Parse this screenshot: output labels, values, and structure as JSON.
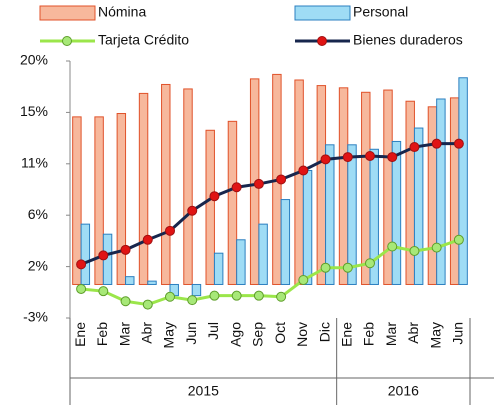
{
  "chart_data": {
    "type": "bar",
    "groups": [
      {
        "label": "2015",
        "categories": [
          "Ene",
          "Feb",
          "Mar",
          "Abr",
          "May",
          "Jun",
          "Jul",
          "Ago",
          "Sep",
          "Oct",
          "Nov",
          "Dic"
        ]
      },
      {
        "label": "2016",
        "categories": [
          "Ene",
          "Feb",
          "Mar",
          "Abr",
          "May",
          "Jun"
        ]
      }
    ],
    "series": [
      {
        "name": "Nómina",
        "type": "bar",
        "color": "#f7b89c",
        "stroke": "#e0522a",
        "values": [
          15.0,
          15.0,
          15.3,
          17.1,
          17.9,
          17.5,
          13.8,
          14.6,
          18.4,
          18.8,
          18.3,
          17.8,
          17.6,
          17.2,
          17.4,
          16.4,
          15.9,
          16.7
        ]
      },
      {
        "name": "Personal",
        "type": "bar",
        "color": "#9fdcf5",
        "stroke": "#2b7fc0",
        "values": [
          5.4,
          4.5,
          0.7,
          0.3,
          -1.0,
          -1.0,
          2.8,
          4.0,
          5.4,
          7.6,
          10.2,
          12.5,
          12.5,
          12.1,
          12.8,
          14.0,
          16.6,
          18.5
        ]
      },
      {
        "name": "Tarjeta Crédito",
        "type": "line",
        "color": "#9be64a",
        "marker": "#a7e878",
        "stroke": "#5e9e2a",
        "values": [
          -0.4,
          -0.6,
          -1.5,
          -1.8,
          -1.1,
          -1.4,
          -1.0,
          -1.0,
          -1.0,
          -1.1,
          0.4,
          1.5,
          1.5,
          1.9,
          3.4,
          3.0,
          3.3,
          4.0
        ]
      },
      {
        "name": "Bienes duraderos",
        "type": "line",
        "color": "#17264d",
        "marker": "#e01414",
        "stroke": "#a01010",
        "values": [
          1.8,
          2.6,
          3.1,
          4.0,
          4.8,
          6.6,
          7.9,
          8.7,
          9.0,
          9.4,
          10.2,
          11.2,
          11.4,
          11.5,
          11.4,
          12.3,
          12.6,
          12.6
        ]
      }
    ],
    "ylim": [
      -3,
      20
    ],
    "yticks": [
      {
        "value": -3,
        "label": "-3%"
      },
      {
        "value": 1.6,
        "label": "2%"
      },
      {
        "value": 6.2,
        "label": "6%"
      },
      {
        "value": 10.8,
        "label": "11%"
      },
      {
        "value": 15.4,
        "label": "15%"
      },
      {
        "value": 20,
        "label": "20%"
      }
    ]
  }
}
